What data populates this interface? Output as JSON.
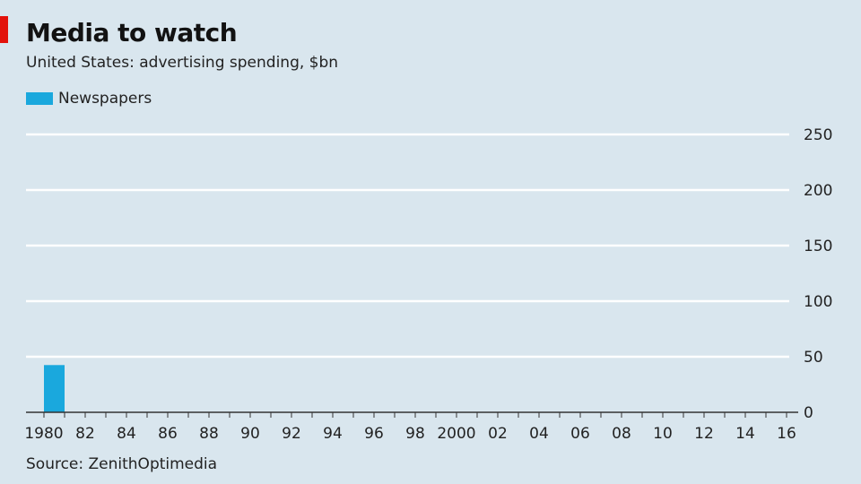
{
  "header": {
    "title": "Media to watch",
    "subtitle": "United States: advertising spending, $bn"
  },
  "legend": [
    {
      "label": "Newspapers",
      "color": "#1aa8dd"
    }
  ],
  "source": "Source: ZenithOptimedia",
  "colors": {
    "background": "#d9e6ee",
    "gridline": "#ffffff",
    "axis": "#333333",
    "accent": "#e3120b"
  },
  "chart_data": {
    "type": "bar",
    "title": "Media to watch",
    "subtitle": "United States: advertising spending, $bn",
    "xlabel": "",
    "ylabel": "",
    "x_range": [
      1980,
      2016
    ],
    "x_ticks": [
      1980,
      1982,
      1984,
      1986,
      1988,
      1990,
      1992,
      1994,
      1996,
      1998,
      2000,
      2002,
      2004,
      2006,
      2008,
      2010,
      2012,
      2014,
      2016
    ],
    "x_tick_labels": [
      "1980",
      "82",
      "84",
      "86",
      "88",
      "90",
      "92",
      "94",
      "96",
      "98",
      "2000",
      "02",
      "04",
      "06",
      "08",
      "10",
      "12",
      "14",
      "16"
    ],
    "ylim": [
      0,
      250
    ],
    "y_ticks": [
      0,
      50,
      100,
      150,
      200,
      250
    ],
    "y_axis_side": "right",
    "grid": true,
    "legend_position": "top-left",
    "series": [
      {
        "name": "Newspapers",
        "color": "#1aa8dd",
        "points": [
          {
            "x": 1980,
            "y": 42.5
          }
        ]
      }
    ]
  }
}
